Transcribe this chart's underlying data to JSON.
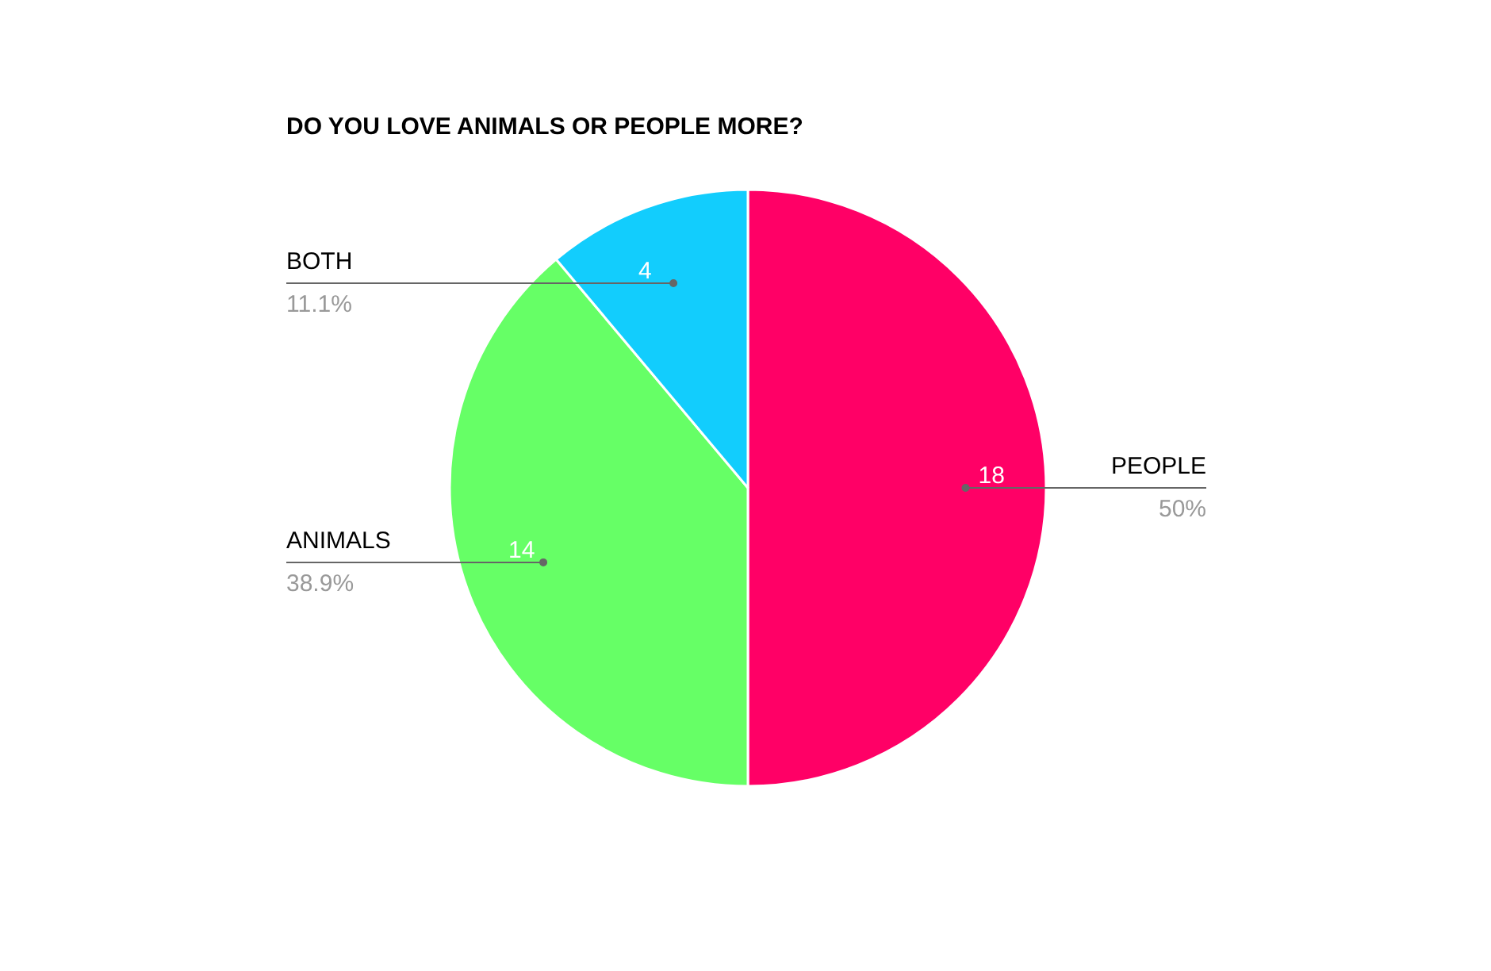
{
  "chart_data": {
    "type": "pie",
    "title": "DO YOU LOVE ANIMALS OR PEOPLE MORE?",
    "categories": [
      "PEOPLE",
      "ANIMALS",
      "BOTH"
    ],
    "values": [
      18,
      14,
      4
    ],
    "colors": [
      "#ff0066",
      "#66ff66",
      "#12cdfd"
    ],
    "data_labels": true,
    "annotations": [
      {
        "text": "50%",
        "x": "PEOPLE"
      },
      {
        "text": "38.9%",
        "x": "ANIMALS"
      },
      {
        "text": "11.1%",
        "x": "BOTH"
      }
    ],
    "legend": false
  }
}
